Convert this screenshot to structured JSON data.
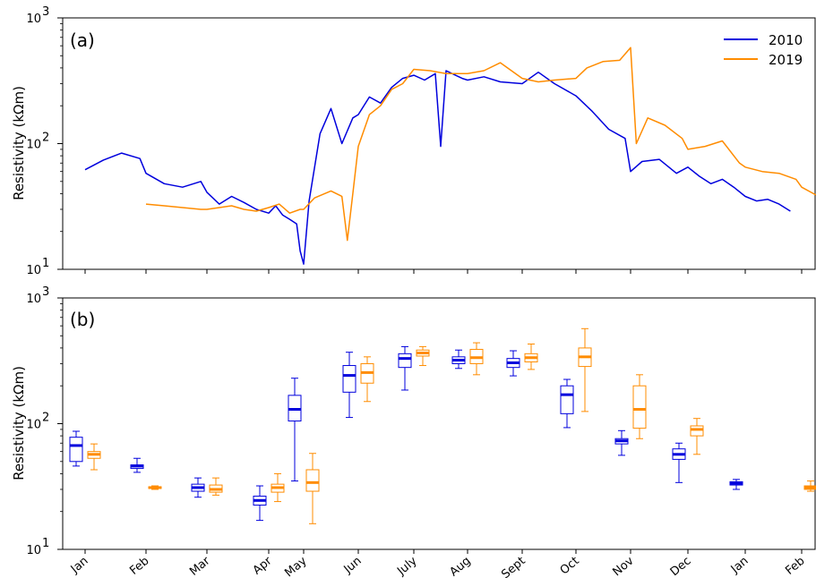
{
  "chart_data": [
    {
      "type": "line",
      "panel_label": "(a)",
      "ylabel": "Resistivity (kΩm)",
      "yscale": "log",
      "ylim": [
        10,
        1000
      ],
      "ytick_labels": [
        "10^1",
        "10^2",
        "10^3"
      ],
      "legend_position": "top-right",
      "series": [
        {
          "name": "2010",
          "color": "#0000dd",
          "points": [
            [
              0.0,
              62
            ],
            [
              0.3,
              74
            ],
            [
              0.6,
              84
            ],
            [
              0.9,
              76
            ],
            [
              1.0,
              58
            ],
            [
              1.3,
              48
            ],
            [
              1.6,
              45
            ],
            [
              1.9,
              50
            ],
            [
              2.0,
              41
            ],
            [
              2.2,
              33
            ],
            [
              2.4,
              38
            ],
            [
              2.6,
              34
            ],
            [
              2.8,
              30
            ],
            [
              3.0,
              28
            ],
            [
              3.2,
              32
            ],
            [
              3.4,
              27
            ],
            [
              3.6,
              25
            ],
            [
              3.8,
              23
            ],
            [
              3.9,
              14
            ],
            [
              4.0,
              11
            ],
            [
              4.1,
              35
            ],
            [
              4.3,
              120
            ],
            [
              4.5,
              190
            ],
            [
              4.7,
              100
            ],
            [
              4.9,
              160
            ],
            [
              5.0,
              170
            ],
            [
              5.2,
              235
            ],
            [
              5.4,
              210
            ],
            [
              5.6,
              280
            ],
            [
              5.8,
              330
            ],
            [
              6.0,
              350
            ],
            [
              6.2,
              320
            ],
            [
              6.4,
              360
            ],
            [
              6.5,
              95
            ],
            [
              6.6,
              380
            ],
            [
              6.9,
              330
            ],
            [
              7.0,
              320
            ],
            [
              7.3,
              340
            ],
            [
              7.6,
              310
            ],
            [
              8.0,
              300
            ],
            [
              8.3,
              370
            ],
            [
              8.6,
              300
            ],
            [
              9.0,
              240
            ],
            [
              9.3,
              180
            ],
            [
              9.6,
              130
            ],
            [
              9.9,
              110
            ],
            [
              10.0,
              60
            ],
            [
              10.2,
              72
            ],
            [
              10.5,
              75
            ],
            [
              10.8,
              58
            ],
            [
              11.0,
              65
            ],
            [
              11.2,
              55
            ],
            [
              11.4,
              48
            ],
            [
              11.6,
              52
            ],
            [
              11.8,
              45
            ],
            [
              12.0,
              38
            ],
            [
              12.2,
              35
            ],
            [
              12.4,
              36
            ],
            [
              12.6,
              33
            ],
            [
              12.8,
              29
            ]
          ]
        },
        {
          "name": "2019",
          "color": "#ff8c00",
          "points": [
            [
              1.0,
              33
            ],
            [
              1.3,
              32
            ],
            [
              1.6,
              31
            ],
            [
              1.9,
              30
            ],
            [
              2.0,
              30
            ],
            [
              2.2,
              31
            ],
            [
              2.4,
              32
            ],
            [
              2.6,
              30
            ],
            [
              2.8,
              29
            ],
            [
              3.0,
              31
            ],
            [
              3.3,
              33
            ],
            [
              3.6,
              28
            ],
            [
              3.9,
              30
            ],
            [
              4.0,
              30
            ],
            [
              4.2,
              37
            ],
            [
              4.5,
              42
            ],
            [
              4.7,
              38
            ],
            [
              4.8,
              17
            ],
            [
              4.9,
              40
            ],
            [
              5.0,
              95
            ],
            [
              5.2,
              170
            ],
            [
              5.4,
              200
            ],
            [
              5.6,
              270
            ],
            [
              5.8,
              300
            ],
            [
              6.0,
              390
            ],
            [
              6.3,
              380
            ],
            [
              6.6,
              360
            ],
            [
              7.0,
              360
            ],
            [
              7.3,
              380
            ],
            [
              7.6,
              440
            ],
            [
              8.0,
              330
            ],
            [
              8.3,
              310
            ],
            [
              8.6,
              320
            ],
            [
              9.0,
              330
            ],
            [
              9.2,
              400
            ],
            [
              9.5,
              450
            ],
            [
              9.8,
              460
            ],
            [
              10.0,
              580
            ],
            [
              10.1,
              100
            ],
            [
              10.3,
              160
            ],
            [
              10.6,
              140
            ],
            [
              10.9,
              110
            ],
            [
              11.0,
              90
            ],
            [
              11.3,
              95
            ],
            [
              11.6,
              105
            ],
            [
              11.9,
              70
            ],
            [
              12.0,
              65
            ],
            [
              12.3,
              60
            ],
            [
              12.6,
              58
            ],
            [
              12.9,
              52
            ],
            [
              13.0,
              45
            ],
            [
              13.3,
              38
            ],
            [
              13.6,
              33
            ],
            [
              13.9,
              31
            ]
          ]
        }
      ]
    },
    {
      "type": "boxplot",
      "panel_label": "(b)",
      "ylabel": "Resistivity (kΩm)",
      "yscale": "log",
      "ylim": [
        10,
        1000
      ],
      "ytick_labels": [
        "10^1",
        "10^2",
        "10^3"
      ],
      "categories": [
        "Jan",
        "Feb",
        "Mar",
        "Apr",
        "May",
        "Jun",
        "July",
        "Aug",
        "Sept",
        "Oct",
        "Nov",
        "Dec",
        "Jan",
        "Feb"
      ],
      "series": [
        {
          "name": "2010",
          "color": "#0000dd",
          "boxes": [
            {
              "category": "Jan",
              "min": 46,
              "q1": 50,
              "median": 67,
              "q3": 78,
              "max": 87
            },
            {
              "category": "Feb",
              "min": 41,
              "q1": 44,
              "median": 46,
              "q3": 47,
              "max": 53
            },
            {
              "category": "Mar",
              "min": 26,
              "q1": 29,
              "median": 31,
              "q3": 33,
              "max": 37
            },
            {
              "category": "Apr",
              "min": 17,
              "q1": 22.5,
              "median": 24.5,
              "q3": 26.5,
              "max": 32
            },
            {
              "category": "May",
              "min": 35,
              "q1": 105,
              "median": 130,
              "q3": 168,
              "max": 230
            },
            {
              "category": "Jun",
              "min": 112,
              "q1": 178,
              "median": 242,
              "q3": 290,
              "max": 370
            },
            {
              "category": "July",
              "min": 185,
              "q1": 280,
              "median": 330,
              "q3": 360,
              "max": 410
            },
            {
              "category": "Aug",
              "min": 275,
              "q1": 300,
              "median": 320,
              "q3": 340,
              "max": 385
            },
            {
              "category": "Sept",
              "min": 240,
              "q1": 280,
              "median": 305,
              "q3": 330,
              "max": 380
            },
            {
              "category": "Oct",
              "min": 93,
              "q1": 120,
              "median": 170,
              "q3": 200,
              "max": 225
            },
            {
              "category": "Nov",
              "min": 56,
              "q1": 69,
              "median": 73,
              "q3": 76,
              "max": 88
            },
            {
              "category": "Dec",
              "min": 34,
              "q1": 52,
              "median": 57,
              "q3": 63,
              "max": 70
            },
            {
              "category": "Jan",
              "min": 30,
              "q1": 32.5,
              "median": 33.5,
              "q3": 34.5,
              "max": 36
            }
          ]
        },
        {
          "name": "2019",
          "color": "#ff8c00",
          "boxes": [
            {
              "category": "Feb",
              "min": 30,
              "q1": 30.5,
              "median": 31,
              "q3": 31.5,
              "max": 32
            },
            {
              "category": "Mar",
              "min": 27,
              "q1": 28.5,
              "median": 30,
              "q3": 32.5,
              "max": 37
            },
            {
              "category": "Apr",
              "min": 24,
              "q1": 28.5,
              "median": 31,
              "q3": 33,
              "max": 40
            },
            {
              "category": "May",
              "min": 16,
              "q1": 29,
              "median": 34,
              "q3": 43,
              "max": 58
            },
            {
              "category": "Jun",
              "min": 150,
              "q1": 210,
              "median": 255,
              "q3": 300,
              "max": 340
            },
            {
              "category": "July",
              "min": 290,
              "q1": 345,
              "median": 365,
              "q3": 385,
              "max": 410
            },
            {
              "category": "Aug",
              "min": 245,
              "q1": 300,
              "median": 335,
              "q3": 390,
              "max": 440
            },
            {
              "category": "Sept",
              "min": 270,
              "q1": 310,
              "median": 335,
              "q3": 360,
              "max": 430
            },
            {
              "category": "Oct",
              "min": 125,
              "q1": 285,
              "median": 340,
              "q3": 400,
              "max": 570
            },
            {
              "category": "Nov",
              "min": 76,
              "q1": 92,
              "median": 130,
              "q3": 200,
              "max": 245
            },
            {
              "category": "Dec",
              "min": 57,
              "q1": 80,
              "median": 90,
              "q3": 96,
              "max": 110
            },
            {
              "category": "Jan",
              "min": 43,
              "q1": 53,
              "median": 57,
              "q3": 60,
              "max": 69
            },
            {
              "category": "Feb",
              "min": 29,
              "q1": 30,
              "median": 31,
              "q3": 32,
              "max": 35
            }
          ]
        }
      ]
    }
  ]
}
